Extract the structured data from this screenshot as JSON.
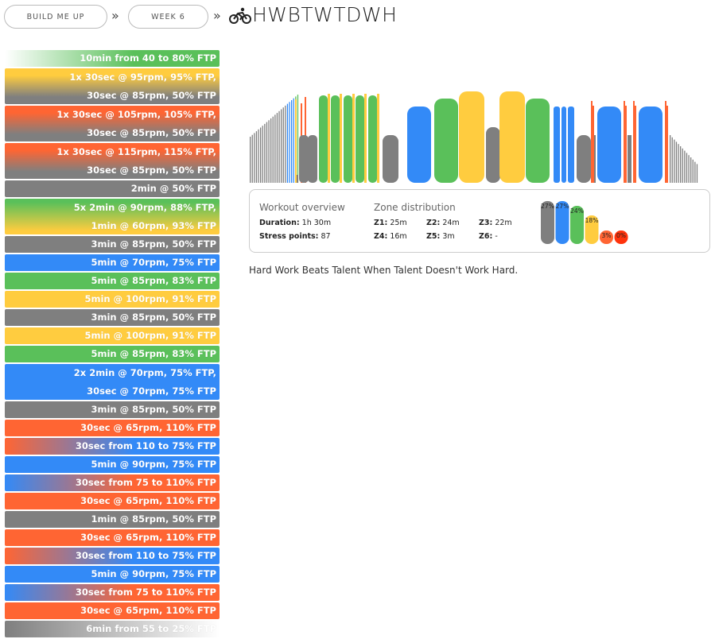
{
  "breadcrumb": {
    "plan": "BUILD ME UP",
    "week": "WEEK 6",
    "separator": "»",
    "workout_title": "HWBTWTDWH",
    "icon": "bicycle-icon"
  },
  "colors": {
    "z1": "#7f7f7f",
    "z2": "#338af7",
    "z3": "#5ac05a",
    "z4": "#ffcc3f",
    "z5": "#ff6533",
    "z6": "#ff330c"
  },
  "intervals": [
    {
      "lines": [
        "10min from 40 to 80% FTP"
      ],
      "fill": "linear-gradient(to right, #ffffff 0%, #5ac05a 60%)"
    },
    {
      "lines": [
        "1x 30sec @ 95rpm, 95% FTP,",
        "30sec @ 85rpm, 50% FTP"
      ],
      "fill": "linear-gradient(to bottom, #ffcc3f 20%, #7f7f7f 80%)"
    },
    {
      "lines": [
        "1x 30sec @ 105rpm, 105% FTP,",
        "30sec @ 85rpm, 50% FTP"
      ],
      "fill": "linear-gradient(to bottom, #ff6533 20%, #7f7f7f 80%)"
    },
    {
      "lines": [
        "1x 30sec @ 115rpm, 115% FTP,",
        "30sec @ 85rpm, 50% FTP"
      ],
      "fill": "linear-gradient(to bottom, #ff6533 20%, #7f7f7f 80%)"
    },
    {
      "lines": [
        "2min @ 50% FTP"
      ],
      "fill": "#7f7f7f"
    },
    {
      "lines": [
        "5x 2min @ 90rpm, 88% FTP,",
        "1min @ 60rpm, 93% FTP"
      ],
      "fill": "linear-gradient(to bottom, #5ac05a 10%, #ffcc3f 90%)"
    },
    {
      "lines": [
        "3min @ 85rpm, 50% FTP"
      ],
      "fill": "#7f7f7f"
    },
    {
      "lines": [
        "5min @ 70rpm, 75% FTP"
      ],
      "fill": "#338af7"
    },
    {
      "lines": [
        "5min @ 85rpm, 83% FTP"
      ],
      "fill": "#5ac05a"
    },
    {
      "lines": [
        "5min @ 100rpm, 91% FTP"
      ],
      "fill": "#ffcc3f"
    },
    {
      "lines": [
        "3min @ 85rpm, 50% FTP"
      ],
      "fill": "#7f7f7f"
    },
    {
      "lines": [
        "5min @ 100rpm, 91% FTP"
      ],
      "fill": "#ffcc3f"
    },
    {
      "lines": [
        "5min @ 85rpm, 83% FTP"
      ],
      "fill": "#5ac05a"
    },
    {
      "lines": [
        "2x 2min @ 70rpm, 75% FTP,",
        "30sec @ 70rpm, 75% FTP"
      ],
      "fill": "#338af7"
    },
    {
      "lines": [
        "3min @ 85rpm, 50% FTP"
      ],
      "fill": "#7f7f7f"
    },
    {
      "lines": [
        "30sec @ 65rpm, 110% FTP"
      ],
      "fill": "#ff6533"
    },
    {
      "lines": [
        "30sec from 110 to 75% FTP"
      ],
      "fill": "linear-gradient(to right, #ff6533 0%, #338af7 60%)"
    },
    {
      "lines": [
        "5min @ 90rpm, 75% FTP"
      ],
      "fill": "#338af7"
    },
    {
      "lines": [
        "30sec from 75 to 110% FTP"
      ],
      "fill": "linear-gradient(to right, #338af7 0%, #ff6533 60%)"
    },
    {
      "lines": [
        "30sec @ 65rpm, 110% FTP"
      ],
      "fill": "#ff6533"
    },
    {
      "lines": [
        "1min @ 85rpm, 50% FTP"
      ],
      "fill": "#7f7f7f"
    },
    {
      "lines": [
        "30sec @ 65rpm, 110% FTP"
      ],
      "fill": "#ff6533"
    },
    {
      "lines": [
        "30sec from 110 to 75% FTP"
      ],
      "fill": "linear-gradient(to right, #ff6533 0%, #338af7 60%)"
    },
    {
      "lines": [
        "5min @ 90rpm, 75% FTP"
      ],
      "fill": "#338af7"
    },
    {
      "lines": [
        "30sec from 75 to 110% FTP"
      ],
      "fill": "linear-gradient(to right, #338af7 0%, #ff6533 60%)"
    },
    {
      "lines": [
        "30sec @ 65rpm, 110% FTP"
      ],
      "fill": "#ff6533"
    },
    {
      "lines": [
        "6min from 55 to 25% FTP"
      ],
      "fill": "linear-gradient(to right, #7f7f7f 0%, #ffffff 100%)"
    }
  ],
  "overview": {
    "heading": "Workout overview",
    "duration_label": "Duration:",
    "duration_value": "1h 30m",
    "stress_label": "Stress points:",
    "stress_value": "87"
  },
  "zones": {
    "heading": "Zone distribution",
    "items": [
      {
        "label": "Z1:",
        "value": "25m"
      },
      {
        "label": "Z2:",
        "value": "24m"
      },
      {
        "label": "Z3:",
        "value": "22m"
      },
      {
        "label": "Z4:",
        "value": "16m"
      },
      {
        "label": "Z5:",
        "value": "3m"
      },
      {
        "label": "Z6:",
        "value": "-"
      }
    ],
    "bars": [
      {
        "pct": 27,
        "label": "27%",
        "color": "#7f7f7f"
      },
      {
        "pct": 27,
        "label": "27%",
        "color": "#338af7"
      },
      {
        "pct": 24,
        "label": "24%",
        "color": "#5ac05a"
      },
      {
        "pct": 18,
        "label": "18%",
        "color": "#ffcc3f"
      },
      {
        "pct": 3,
        "label": "3%",
        "color": "#ff6533"
      },
      {
        "pct": 0,
        "label": "0%",
        "color": "#ff330c"
      }
    ]
  },
  "description": "Hard Work Beats Talent When Talent Doesn't Work Hard."
}
